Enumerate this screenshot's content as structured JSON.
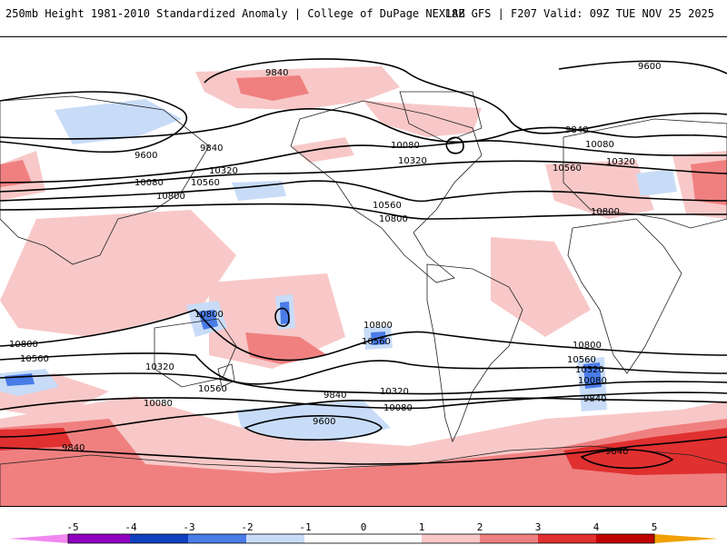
{
  "header": {
    "left_title": "250mb Height 1981-2010 Standardized Anomaly | College of DuPage NEXLAB",
    "right_title": "18Z GFS | F207 Valid: 09Z TUE NOV 25 2025"
  },
  "colors": {
    "c_m5": "#f088f0",
    "c_m4": "#9000c0",
    "c_m3": "#1040c0",
    "c_m2": "#4a7ce8",
    "c_m1": "#c8dcf8",
    "c_0": "#ffffff",
    "c_1": "#f8c8c8",
    "c_2": "#f08080",
    "c_3": "#e03030",
    "c_4": "#c00000",
    "c_5": "#f0a000"
  },
  "contour_labels": {
    "l1": "9840",
    "l2": "9600",
    "l3": "9600",
    "l4": "9840",
    "l5": "10320",
    "l6": "10080",
    "l7": "10560",
    "l8": "10800",
    "l9": "10080",
    "l10": "10320",
    "l11": "10560",
    "l12": "10800",
    "l13": "9840",
    "l14": "10080",
    "l15": "10320",
    "l16": "10560",
    "l17": "10800",
    "l18": "10800",
    "l19": "10800",
    "l20": "10560",
    "l21": "10320",
    "l22": "10560",
    "l23": "10800",
    "l24": "10560",
    "l25": "10320",
    "l26": "10080",
    "l27": "9840",
    "l28": "10080",
    "l29": "9600",
    "l30": "10800",
    "l31": "10560",
    "l32": "10320",
    "l33": "10080",
    "l34": "9840",
    "l35": "9840",
    "l36": "9840",
    "l37": "10080",
    "l38": "10320",
    "l39": "10560",
    "l40": "10800"
  },
  "colorbar": {
    "ticks": [
      "-5",
      "-4",
      "-3",
      "-2",
      "-1",
      "0",
      "1",
      "2",
      "3",
      "4",
      "5"
    ]
  }
}
